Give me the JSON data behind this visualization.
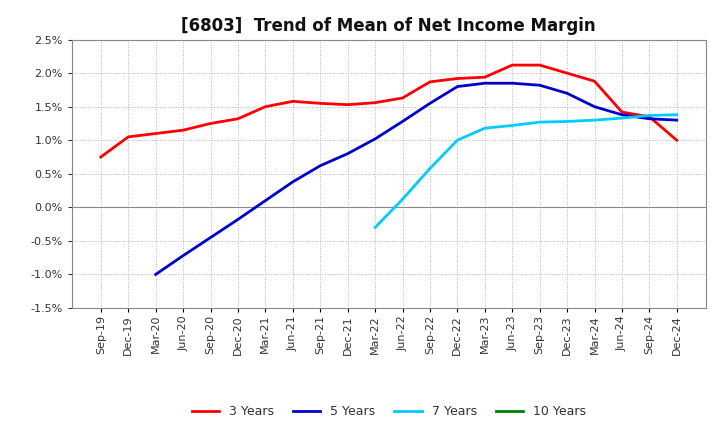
{
  "title": "[6803]  Trend of Mean of Net Income Margin",
  "background_color": "#ffffff",
  "grid_color": "#aaaaaa",
  "ylim": [
    -1.5,
    2.5
  ],
  "yticks": [
    -1.5,
    -1.0,
    -0.5,
    0.0,
    0.5,
    1.0,
    1.5,
    2.0,
    2.5
  ],
  "xtick_labels": [
    "Sep-19",
    "Dec-19",
    "Mar-20",
    "Jun-20",
    "Sep-20",
    "Dec-20",
    "Mar-21",
    "Jun-21",
    "Sep-21",
    "Dec-21",
    "Mar-22",
    "Jun-22",
    "Sep-22",
    "Dec-22",
    "Mar-23",
    "Jun-23",
    "Sep-23",
    "Dec-23",
    "Mar-24",
    "Jun-24",
    "Sep-24",
    "Dec-24"
  ],
  "y_3yr": [
    0.75,
    1.05,
    1.1,
    1.15,
    1.25,
    1.32,
    1.5,
    1.58,
    1.55,
    1.53,
    1.56,
    1.63,
    1.87,
    1.92,
    1.94,
    2.12,
    2.12,
    2.0,
    1.88,
    1.42,
    1.35,
    1.0
  ],
  "y_5yr": [
    null,
    null,
    -1.0,
    -0.72,
    -0.45,
    -0.18,
    0.1,
    0.38,
    0.62,
    0.8,
    1.02,
    1.28,
    1.55,
    1.8,
    1.85,
    1.85,
    1.82,
    1.7,
    1.5,
    1.38,
    1.32,
    1.3
  ],
  "y_7yr": [
    null,
    null,
    null,
    null,
    null,
    null,
    null,
    null,
    null,
    null,
    -0.3,
    0.12,
    0.58,
    1.0,
    1.18,
    1.22,
    1.27,
    1.28,
    1.3,
    1.33,
    1.37,
    1.38
  ],
  "y_10yr": [
    null,
    null,
    null,
    null,
    null,
    null,
    null,
    null,
    null,
    null,
    null,
    null,
    null,
    null,
    null,
    null,
    null,
    null,
    null,
    null,
    null,
    null
  ],
  "colors": [
    "#ff0000",
    "#0000cd",
    "#00ccff",
    "#008000"
  ],
  "legend_labels": [
    "3 Years",
    "5 Years",
    "7 Years",
    "10 Years"
  ],
  "linewidth": 2.0,
  "title_fontsize": 12,
  "tick_fontsize": 8,
  "legend_fontsize": 9
}
